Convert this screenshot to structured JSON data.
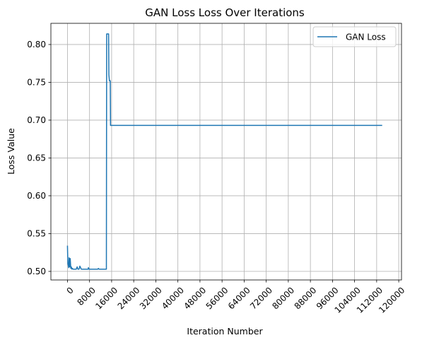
{
  "chart_data": {
    "type": "line",
    "title": "GAN Loss Loss Over Iterations",
    "xlabel": "Iteration Number",
    "ylabel": "Loss Value",
    "xlim": [
      -6000,
      121000
    ],
    "ylim": [
      0.4887,
      0.828
    ],
    "x_ticks": [
      0,
      8000,
      16000,
      24000,
      32000,
      40000,
      48000,
      56000,
      64000,
      72000,
      80000,
      88000,
      96000,
      104000,
      112000,
      120000
    ],
    "y_ticks": [
      0.5,
      0.55,
      0.6,
      0.65,
      0.7,
      0.75,
      0.8
    ],
    "y_tick_labels": [
      "0.50",
      "0.55",
      "0.60",
      "0.65",
      "0.70",
      "0.75",
      "0.80"
    ],
    "grid": true,
    "legend": {
      "position": "top-right",
      "entries": [
        "GAN Loss"
      ]
    },
    "colors": {
      "series": "#1f77b4",
      "grid": "#b0b0b0"
    },
    "series": [
      {
        "name": "GAN Loss",
        "x": [
          0,
          150,
          300,
          450,
          600,
          800,
          1000,
          1200,
          1400,
          1600,
          1800,
          2000,
          2200,
          2500,
          2800,
          3200,
          3500,
          3800,
          4000,
          4200,
          4500,
          5000,
          5500,
          6000,
          6500,
          7000,
          7500,
          7600,
          7800,
          8000,
          9000,
          10000,
          11000,
          11200,
          11400,
          12000,
          13000,
          13600,
          14000,
          14100,
          14200,
          14300,
          14900,
          15000,
          15200,
          15400,
          15500,
          15600,
          15700,
          16000,
          20000,
          40000,
          60000,
          80000,
          100000,
          114000
        ],
        "y": [
          0.534,
          0.51,
          0.508,
          0.505,
          0.518,
          0.506,
          0.517,
          0.504,
          0.506,
          0.503,
          0.504,
          0.503,
          0.503,
          0.503,
          0.503,
          0.503,
          0.506,
          0.503,
          0.503,
          0.503,
          0.507,
          0.503,
          0.503,
          0.503,
          0.503,
          0.503,
          0.503,
          0.505,
          0.503,
          0.503,
          0.503,
          0.503,
          0.503,
          0.504,
          0.503,
          0.503,
          0.503,
          0.503,
          0.503,
          0.503,
          0.814,
          0.814,
          0.814,
          0.76,
          0.752,
          0.752,
          0.752,
          0.693,
          0.693,
          0.693,
          0.693,
          0.693,
          0.693,
          0.693,
          0.693,
          0.693
        ]
      }
    ]
  }
}
